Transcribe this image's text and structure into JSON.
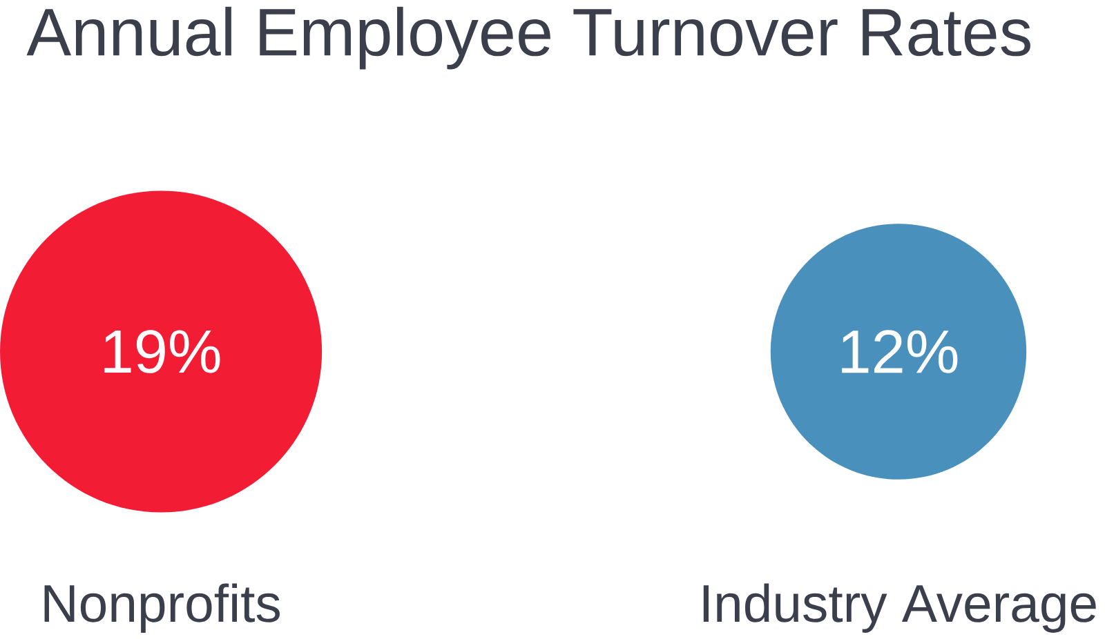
{
  "chart_data": {
    "type": "other",
    "title": "Annual Employee Turnover Rates",
    "categories": [
      "Nonprofits",
      "Industry Average"
    ],
    "values": [
      19,
      12
    ],
    "colors": [
      "#f21c35",
      "#4a90bd"
    ],
    "value_labels": [
      "19%",
      "12%"
    ]
  }
}
